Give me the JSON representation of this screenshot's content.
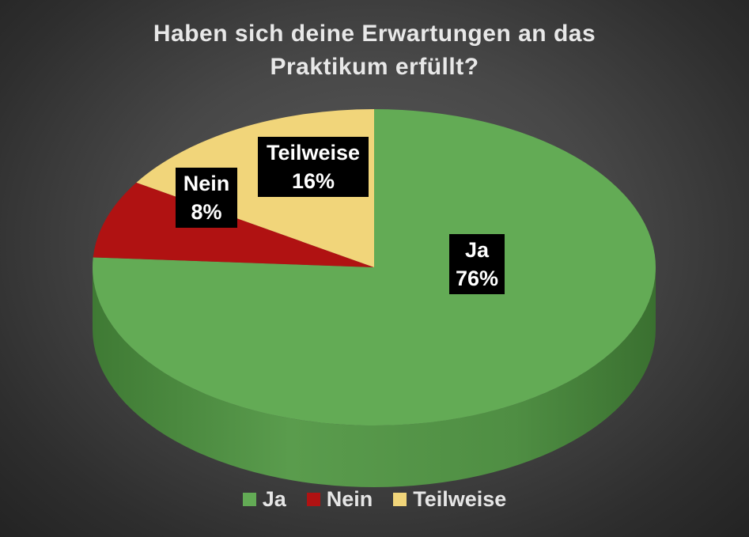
{
  "chart_data": {
    "type": "pie",
    "title_lines": [
      "Haben sich deine Erwartungen an das",
      "Praktikum erfüllt?"
    ],
    "categories": [
      "Ja",
      "Nein",
      "Teilweise"
    ],
    "values": [
      76,
      8,
      16
    ],
    "value_labels": [
      "76%",
      "8%",
      "16%"
    ],
    "colors": [
      "#63ab55",
      "#b01212",
      "#f1d57a"
    ],
    "legend_position": "bottom",
    "style": "3d"
  }
}
